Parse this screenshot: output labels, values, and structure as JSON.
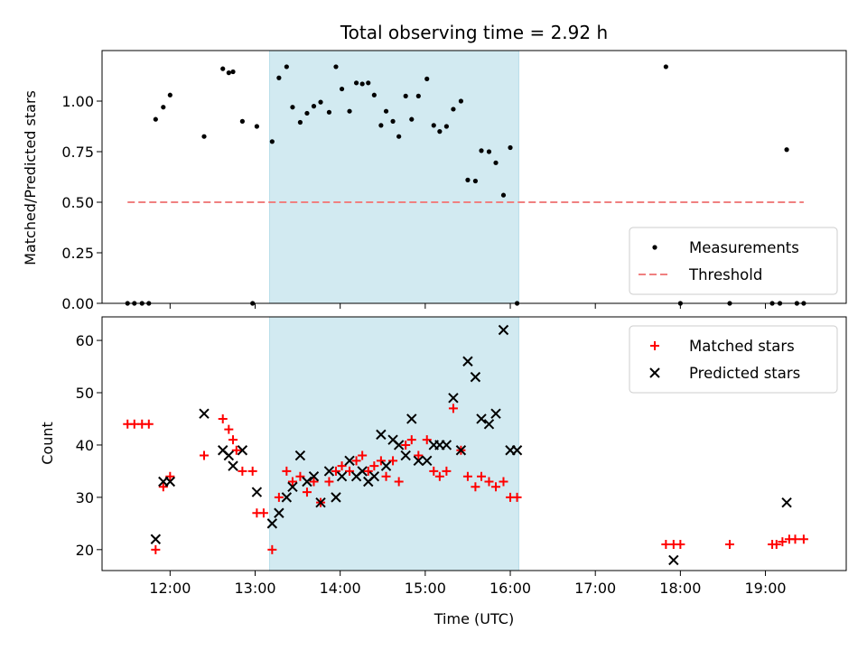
{
  "chart_data": {
    "title": "Total observing time = 2.92 h",
    "xlabel": "Time (UTC)",
    "x_ticks": [
      "12:00",
      "13:00",
      "14:00",
      "15:00",
      "16:00",
      "17:00",
      "18:00",
      "19:00"
    ],
    "x_tick_hours": [
      12,
      13,
      14,
      15,
      16,
      17,
      18,
      19
    ],
    "xlim_hours": [
      11.2,
      19.95
    ],
    "shaded_span_hours": [
      13.17,
      16.1
    ],
    "shade_color": "#add8e6",
    "panels": [
      {
        "type": "scatter",
        "ylabel": "Matched/Predicted stars",
        "ylim": [
          0,
          1.25
        ],
        "y_ticks": [
          "0.00",
          "0.25",
          "0.50",
          "0.75",
          "1.00"
        ],
        "y_tick_values": [
          0,
          0.25,
          0.5,
          0.75,
          1.0
        ],
        "legend_position": "lower-right",
        "threshold": {
          "name": "Threshold",
          "value": 0.5,
          "x_range_hours": [
            11.5,
            19.45
          ],
          "color": "#f08080"
        },
        "series": [
          {
            "name": "Measurements",
            "color": "#000000",
            "marker": "dot",
            "x_hours": [
              11.5,
              11.58,
              11.67,
              11.75,
              11.83,
              11.92,
              12.0,
              12.4,
              12.62,
              12.69,
              12.74,
              12.85,
              12.97,
              13.02,
              13.2,
              13.28,
              13.37,
              13.44,
              13.53,
              13.61,
              13.69,
              13.77,
              13.87,
              13.95,
              14.02,
              14.11,
              14.19,
              14.26,
              14.33,
              14.4,
              14.48,
              14.54,
              14.62,
              14.69,
              14.77,
              14.84,
              14.92,
              15.02,
              15.1,
              15.17,
              15.25,
              15.33,
              15.42,
              15.5,
              15.59,
              15.66,
              15.75,
              15.83,
              15.92,
              16.0,
              16.08,
              17.83,
              18.0,
              18.58,
              19.08,
              19.17,
              19.25,
              19.37,
              19.45
            ],
            "y": [
              0,
              0,
              0,
              0,
              0.91,
              0.97,
              1.03,
              0.825,
              1.16,
              1.14,
              1.145,
              0.9,
              0,
              0.875,
              0.8,
              1.115,
              1.17,
              0.97,
              0.895,
              0.94,
              0.975,
              0.995,
              0.945,
              1.17,
              1.06,
              0.95,
              1.09,
              1.085,
              1.09,
              1.03,
              0.88,
              0.95,
              0.9,
              0.825,
              1.025,
              0.91,
              1.025,
              1.11,
              0.88,
              0.85,
              0.875,
              0.96,
              1.0,
              0.61,
              0.605,
              0.755,
              0.75,
              0.695,
              0.535,
              0.77,
              0,
              1.17,
              0,
              0,
              0,
              0,
              0.76,
              0,
              0
            ]
          }
        ]
      },
      {
        "type": "scatter",
        "ylabel": "Count",
        "ylim": [
          16,
          64.5
        ],
        "y_ticks": [
          "20",
          "30",
          "40",
          "50",
          "60"
        ],
        "y_tick_values": [
          20,
          30,
          40,
          50,
          60
        ],
        "legend_position": "upper-right",
        "series": [
          {
            "name": "Matched stars",
            "color": "#ff0000",
            "marker": "plus",
            "x_hours": [
              11.5,
              11.58,
              11.67,
              11.75,
              11.83,
              11.92,
              12.0,
              12.4,
              12.62,
              12.69,
              12.74,
              12.78,
              12.85,
              12.97,
              13.02,
              13.1,
              13.2,
              13.28,
              13.37,
              13.44,
              13.53,
              13.61,
              13.69,
              13.77,
              13.87,
              13.95,
              14.02,
              14.11,
              14.19,
              14.26,
              14.33,
              14.4,
              14.48,
              14.54,
              14.62,
              14.69,
              14.77,
              14.84,
              14.92,
              15.02,
              15.1,
              15.17,
              15.25,
              15.33,
              15.42,
              15.5,
              15.59,
              15.66,
              15.75,
              15.83,
              15.92,
              16.0,
              16.08,
              17.83,
              17.92,
              18.0,
              18.58,
              19.08,
              19.13,
              19.2,
              19.28,
              19.35,
              19.45
            ],
            "y": [
              44,
              44,
              44,
              44,
              20,
              32,
              34,
              38,
              45,
              43,
              41,
              39,
              35,
              35,
              27,
              27,
              20,
              30,
              35,
              33,
              34,
              31,
              33,
              29,
              33,
              35,
              36,
              35,
              37,
              38,
              35,
              36,
              37,
              34,
              37,
              33,
              40,
              41,
              38,
              41,
              35,
              34,
              35,
              47,
              39,
              34,
              32,
              34,
              33,
              32,
              33,
              30,
              30,
              21,
              21,
              21,
              21,
              21,
              21,
              21.5,
              22,
              22,
              22
            ]
          },
          {
            "name": "Predicted stars",
            "color": "#000000",
            "marker": "x",
            "x_hours": [
              11.83,
              11.92,
              12.0,
              12.4,
              12.62,
              12.69,
              12.74,
              12.85,
              13.02,
              13.2,
              13.28,
              13.37,
              13.44,
              13.53,
              13.61,
              13.69,
              13.77,
              13.87,
              13.95,
              14.02,
              14.11,
              14.19,
              14.26,
              14.33,
              14.4,
              14.48,
              14.54,
              14.62,
              14.69,
              14.77,
              14.84,
              14.92,
              15.02,
              15.1,
              15.17,
              15.25,
              15.33,
              15.42,
              15.5,
              15.59,
              15.66,
              15.75,
              15.83,
              15.92,
              16.0,
              16.08,
              17.92,
              19.25
            ],
            "y": [
              22,
              33,
              33,
              46,
              39,
              38,
              36,
              39,
              31,
              25,
              27,
              30,
              32,
              38,
              33,
              34,
              29,
              35,
              30,
              34,
              37,
              34,
              35,
              33,
              34,
              42,
              36,
              41,
              40,
              38,
              45,
              37,
              37,
              40,
              40,
              40,
              49,
              39,
              56,
              53,
              45,
              44,
              46,
              62,
              39,
              39,
              18,
              29
            ]
          }
        ]
      }
    ]
  }
}
